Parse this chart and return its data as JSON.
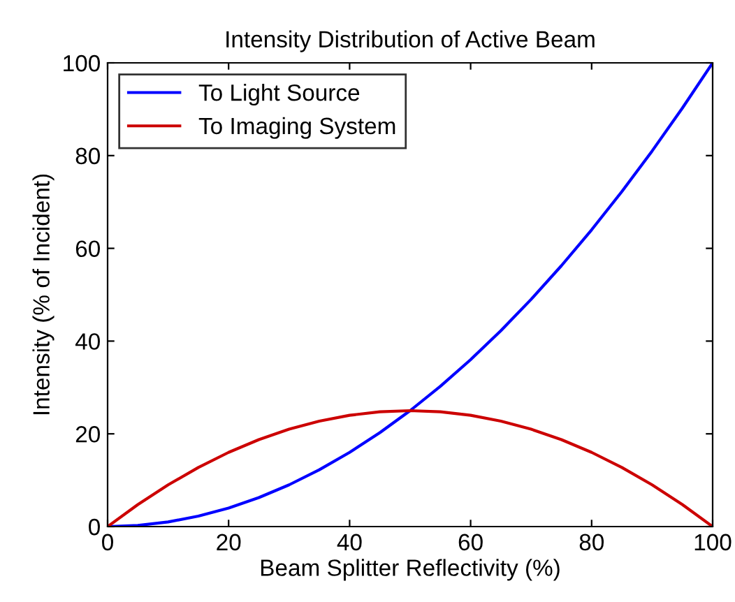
{
  "chart_data": {
    "type": "line",
    "title": "Intensity Distribution of Active Beam",
    "xlabel": "Beam Splitter Reflectivity (%)",
    "ylabel": "Intensity (% of Incident)",
    "x": [
      0,
      5,
      10,
      15,
      20,
      25,
      30,
      35,
      40,
      45,
      50,
      55,
      60,
      65,
      70,
      75,
      80,
      85,
      90,
      95,
      100
    ],
    "series": [
      {
        "name": "To Light Source",
        "color": "#0000ff",
        "values": [
          0,
          0.25,
          1,
          2.25,
          4,
          6.25,
          9,
          12.25,
          16,
          20.25,
          25,
          30.25,
          36,
          42.25,
          49,
          56.25,
          64,
          72.25,
          81,
          90.25,
          100
        ]
      },
      {
        "name": "To Imaging System",
        "color": "#cc0000",
        "values": [
          0,
          4.75,
          9,
          12.75,
          16,
          18.75,
          21,
          22.75,
          24,
          24.75,
          25,
          24.75,
          24,
          22.75,
          21,
          18.75,
          16,
          12.75,
          9,
          4.75,
          0
        ]
      }
    ],
    "xlim": [
      0,
      100
    ],
    "ylim": [
      0,
      100
    ],
    "xticks": [
      0,
      20,
      40,
      60,
      80,
      100
    ],
    "yticks": [
      0,
      20,
      40,
      60,
      80,
      100
    ],
    "legend": "top left",
    "grid": false,
    "marker": "none",
    "line_style": "solid"
  }
}
